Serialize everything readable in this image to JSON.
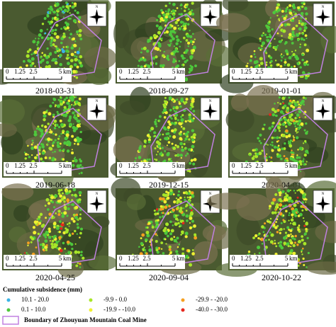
{
  "panels": [
    {
      "date": "2018-03-31"
    },
    {
      "date": "2018-09-27"
    },
    {
      "date": "2019-01-01"
    },
    {
      "date": "2019-06-18"
    },
    {
      "date": "2019-12-15"
    },
    {
      "date": "2020-04-01"
    },
    {
      "date": "2020-04-25"
    },
    {
      "date": "2020-09-04"
    },
    {
      "date": "2020-10-22"
    }
  ],
  "north_label": "N",
  "scale_bar": {
    "labels": [
      "0",
      "1.25",
      "2.5",
      "5"
    ],
    "unit": "km"
  },
  "legend": {
    "title": "Cumulative subsidence (mm)",
    "items": [
      {
        "label": "10.1 - 20.0",
        "color": "#3ab4e6"
      },
      {
        "label": "0.1 - 10.0",
        "color": "#4ec83c"
      },
      {
        "label": "-9.9 - 0.0",
        "color": "#a8e628"
      },
      {
        "label": "-19.9 - -10.0",
        "color": "#f0f032"
      },
      {
        "label": "-29.9 - -20.0",
        "color": "#f5a020"
      },
      {
        "label": "-40.0 - -30.0",
        "color": "#e6281e"
      }
    ],
    "boundary": {
      "label": "Boundary of Zhouyuan Mountain Coal Mine",
      "color": "#c080e0"
    }
  }
}
